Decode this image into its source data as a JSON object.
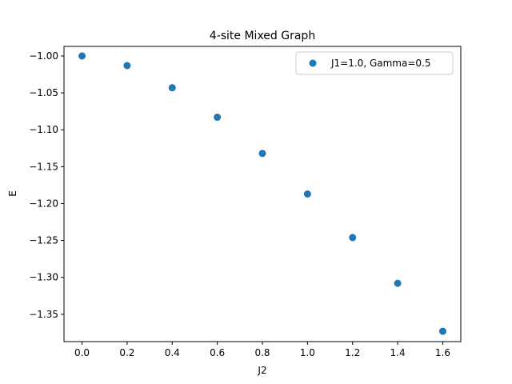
{
  "chart_data": {
    "type": "scatter",
    "title": "4-site Mixed Graph",
    "xlabel": "J2",
    "ylabel": "E",
    "xlim": [
      -0.08,
      1.68
    ],
    "ylim": [
      -1.387,
      -0.987
    ],
    "xticks": [
      0.0,
      0.2,
      0.4,
      0.6,
      0.8,
      1.0,
      1.2,
      1.4,
      1.6
    ],
    "xtick_labels": [
      "0.0",
      "0.2",
      "0.4",
      "0.6",
      "0.8",
      "1.0",
      "1.2",
      "1.4",
      "1.6"
    ],
    "yticks": [
      -1.0,
      -1.05,
      -1.1,
      -1.15,
      -1.2,
      -1.25,
      -1.3,
      -1.35
    ],
    "ytick_labels": [
      "−1.00",
      "−1.05",
      "−1.10",
      "−1.15",
      "−1.20",
      "−1.25",
      "−1.30",
      "−1.35"
    ],
    "grid": false,
    "legend_position": "top-right",
    "series": [
      {
        "name": "J1=1.0, Gamma=0.5",
        "color": "#1f77b4",
        "x": [
          0.0,
          0.2,
          0.4,
          0.6,
          0.8,
          1.0,
          1.2,
          1.4,
          1.6
        ],
        "y": [
          -1.0,
          -1.013,
          -1.043,
          -1.083,
          -1.132,
          -1.187,
          -1.246,
          -1.308,
          -1.373
        ]
      }
    ]
  }
}
